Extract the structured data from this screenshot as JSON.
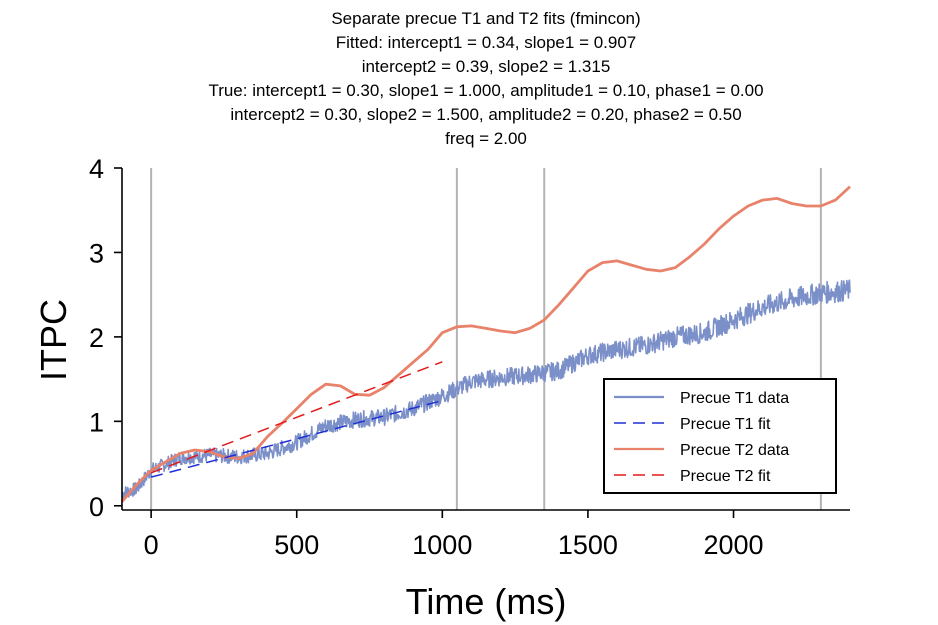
{
  "chart_data": {
    "type": "line",
    "title_lines": [
      "Separate precue T1 and T2 fits (fmincon)",
      "Fitted: intercept1 = 0.34, slope1 = 0.907",
      "intercept2 = 0.39, slope2 = 1.315",
      "True: intercept1 = 0.30, slope1 = 1.000, amplitude1 = 0.10, phase1 = 0.00",
      "intercept2 = 0.30, slope2 = 1.500, amplitude2 = 0.20, phase2 = 0.50",
      "freq = 2.00"
    ],
    "xlabel": "Time (ms)",
    "ylabel": "ITPC",
    "xlim": [
      -100,
      2400
    ],
    "ylim": [
      -0.05,
      4.0
    ],
    "xticks": [
      0,
      500,
      1000,
      1500,
      2000
    ],
    "xtick_labels": [
      "0",
      "500",
      "1000",
      "1500",
      "2000"
    ],
    "yticks": [
      0,
      1,
      2,
      3,
      4
    ],
    "ytick_labels": [
      "0",
      "1",
      "2",
      "3",
      "4"
    ],
    "vlines_x": [
      0,
      1050,
      1350,
      2300
    ],
    "legend_position": "lower-right",
    "series": [
      {
        "name": "Precue T1 data",
        "style": "solid-noisy",
        "color": "#7b8fc8",
        "x": [
          -100,
          -50,
          0,
          100,
          200,
          300,
          400,
          500,
          600,
          700,
          800,
          900,
          1000,
          1100,
          1200,
          1300,
          1400,
          1500,
          1600,
          1700,
          1800,
          1900,
          2000,
          2100,
          2200,
          2300,
          2400
        ],
        "y": [
          0.15,
          0.2,
          0.42,
          0.57,
          0.6,
          0.58,
          0.62,
          0.75,
          0.95,
          1.02,
          1.05,
          1.15,
          1.3,
          1.47,
          1.52,
          1.55,
          1.6,
          1.78,
          1.85,
          1.9,
          2.0,
          2.05,
          2.2,
          2.35,
          2.45,
          2.52,
          2.55
        ]
      },
      {
        "name": "Precue T1 fit",
        "style": "dashed",
        "color": "#1f2fd6",
        "x": [
          0,
          1000
        ],
        "y": [
          0.34,
          1.247
        ]
      },
      {
        "name": "Precue T2 data",
        "style": "solid",
        "color": "#e8826a",
        "x": [
          -100,
          -50,
          0,
          50,
          100,
          150,
          200,
          250,
          300,
          350,
          400,
          450,
          500,
          550,
          600,
          650,
          700,
          750,
          800,
          850,
          900,
          950,
          1000,
          1050,
          1100,
          1150,
          1200,
          1250,
          1300,
          1350,
          1400,
          1450,
          1500,
          1550,
          1600,
          1650,
          1700,
          1750,
          1800,
          1850,
          1900,
          1950,
          2000,
          2050,
          2100,
          2150,
          2200,
          2250,
          2300,
          2350,
          2400
        ],
        "y": [
          0.05,
          0.25,
          0.42,
          0.52,
          0.62,
          0.66,
          0.64,
          0.58,
          0.56,
          0.62,
          0.82,
          0.98,
          1.15,
          1.32,
          1.44,
          1.42,
          1.32,
          1.31,
          1.4,
          1.55,
          1.7,
          1.85,
          2.05,
          2.12,
          2.13,
          2.1,
          2.07,
          2.05,
          2.1,
          2.2,
          2.38,
          2.58,
          2.78,
          2.88,
          2.9,
          2.85,
          2.8,
          2.78,
          2.82,
          2.95,
          3.1,
          3.28,
          3.43,
          3.55,
          3.62,
          3.64,
          3.58,
          3.55,
          3.55,
          3.62,
          3.78
        ]
      },
      {
        "name": "Precue T2 fit",
        "style": "dashed",
        "color": "#e31a1c",
        "x": [
          0,
          1000
        ],
        "y": [
          0.39,
          1.705
        ]
      }
    ]
  }
}
